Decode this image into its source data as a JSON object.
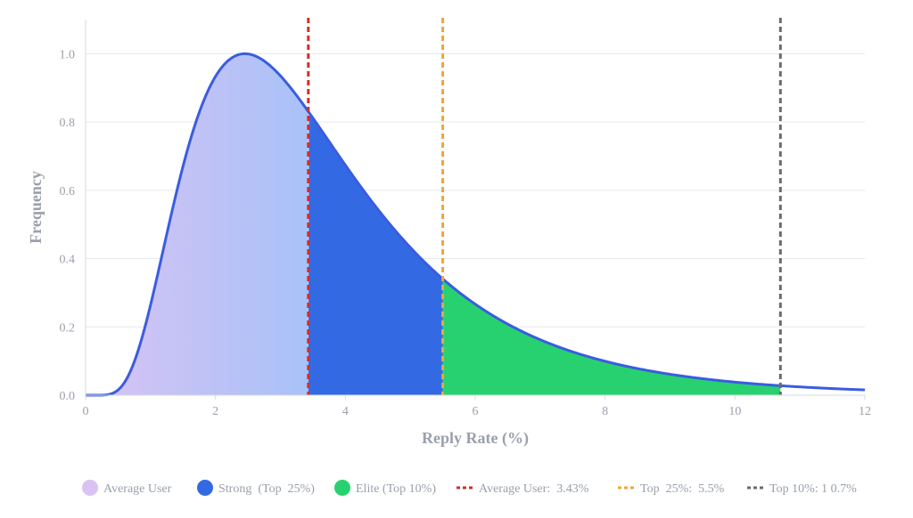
{
  "chart_data": {
    "type": "area",
    "xlabel": "Reply Rate (%)",
    "ylabel": "Frequency",
    "xlim": [
      0,
      12
    ],
    "ylim": [
      0,
      1.1
    ],
    "x_ticks": [
      "0",
      "2",
      "4",
      "6",
      "8",
      "10",
      "12"
    ],
    "y_ticks": [
      "0.0",
      "0.2",
      "0.4",
      "0.6",
      "0.8",
      "1.0"
    ],
    "grid": "horizontal",
    "legend_position": "bottom",
    "curve": {
      "description_points": [
        {
          "x": 0.0,
          "y": 0.0
        },
        {
          "x": 0.3,
          "y": 0.01
        },
        {
          "x": 0.6,
          "y": 0.08
        },
        {
          "x": 1.0,
          "y": 0.35
        },
        {
          "x": 1.5,
          "y": 0.79
        },
        {
          "x": 2.13,
          "y": 1.0
        },
        {
          "x": 3.0,
          "y": 0.86
        },
        {
          "x": 3.43,
          "y": 0.74
        },
        {
          "x": 4.0,
          "y": 0.62
        },
        {
          "x": 5.0,
          "y": 0.4
        },
        {
          "x": 5.5,
          "y": 0.32
        },
        {
          "x": 6.0,
          "y": 0.26
        },
        {
          "x": 7.0,
          "y": 0.16
        },
        {
          "x": 8.0,
          "y": 0.1
        },
        {
          "x": 9.0,
          "y": 0.06
        },
        {
          "x": 10.0,
          "y": 0.04
        },
        {
          "x": 10.7,
          "y": 0.031
        },
        {
          "x": 11.0,
          "y": 0.028
        },
        {
          "x": 12.0,
          "y": 0.02
        }
      ],
      "color": "#3a5ce0"
    },
    "regions": [
      {
        "name": "Average User",
        "from": 0,
        "to": 3.43,
        "color_start": "#d8c3f3",
        "color_end": "#a8c2f8"
      },
      {
        "name": "Strong (Top 25%)",
        "from": 3.43,
        "to": 5.5,
        "color": "#336ae3"
      },
      {
        "name": "Elite (Top 10%)",
        "from": 5.5,
        "to": 10.7,
        "color": "#28d16f"
      }
    ],
    "reference_lines": [
      {
        "name": "Average User: 3.43%",
        "x": 3.43,
        "color": "#d62d28"
      },
      {
        "name": "Top 25%: 5.5%",
        "x": 5.5,
        "color": "#f0a43a"
      },
      {
        "name": "Top 10%: 10.7%",
        "x": 10.7,
        "color": "#6b6b6b"
      }
    ],
    "legend": [
      {
        "label": "Average User",
        "kind": "circle",
        "color": "#d8c3f3"
      },
      {
        "label": "Strong  (Top  25%)",
        "kind": "circle",
        "color": "#336ae3"
      },
      {
        "label": "Elite (Top 10%)",
        "kind": "circle",
        "color": "#28d16f"
      },
      {
        "label": "Average User:  3.43%",
        "kind": "dash",
        "color": "#d62d28"
      },
      {
        "label": "Top  25%:  5.5%",
        "kind": "dash",
        "color": "#f0a43a"
      },
      {
        "label": "Top 10%: 1 0.7%",
        "kind": "dash",
        "color": "#6b6b6b"
      }
    ]
  }
}
